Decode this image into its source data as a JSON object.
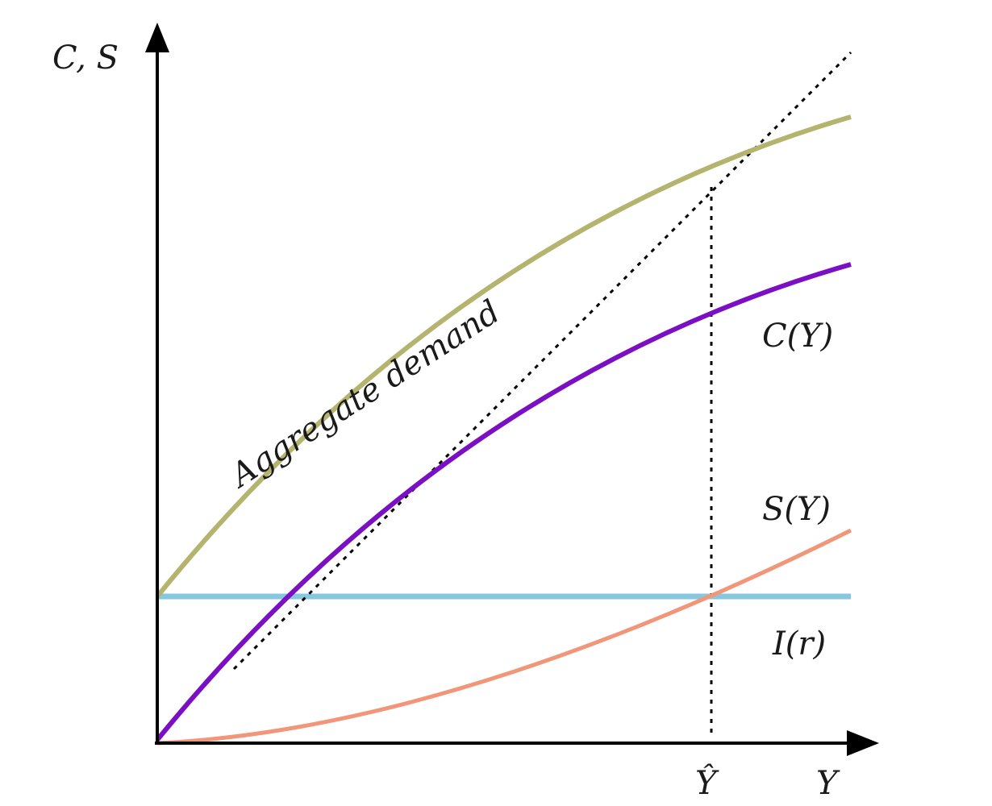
{
  "diagram": {
    "y_axis_label": "C, S",
    "x_axis_label": "Y",
    "equilibrium_label": "Ŷ",
    "curves": {
      "aggregate_demand": {
        "label": "Aggregate   demand",
        "color": "#b5b46e"
      },
      "consumption": {
        "label": "C(Y)",
        "color": "#7a0fc4"
      },
      "saving": {
        "label": "S(Y)",
        "color": "#f2967a"
      },
      "investment": {
        "label": "I(r)",
        "color": "#87c8e0"
      },
      "forty_five_line": {
        "color": "#000000"
      }
    },
    "axis_color": "#000000"
  }
}
